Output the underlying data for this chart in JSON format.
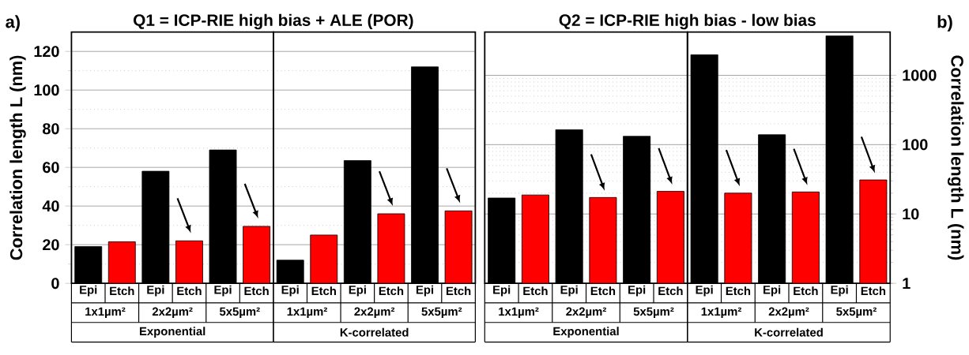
{
  "chart_data": [
    {
      "type": "bar",
      "title": "Q1 = ICP-RIE high bias + ALE (POR)",
      "ylabel": "Correlation length L (nm)",
      "xlabel": "Exponential",
      "categories": [
        "Epi",
        "Etch",
        "Epi",
        "Etch",
        "Epi",
        "Etch"
      ],
      "values": [
        19,
        21.5,
        58,
        22,
        69,
        29.5
      ],
      "colors": [
        "#000000",
        "#ff0000",
        "#000000",
        "#ff0000",
        "#000000",
        "#ff0000"
      ],
      "ylim": [
        0,
        130
      ],
      "yticks": [
        0,
        20,
        40,
        60,
        80,
        100,
        120
      ],
      "grid": "y",
      "annotations": [
        "a)",
        "1x1µm²",
        "2x2µm²",
        "5x5µm²"
      ]
    },
    {
      "type": "bar",
      "xlabel": "K-correlated",
      "categories": [
        "Epi",
        "Etch",
        "Epi",
        "Etch",
        "Epi",
        "Etch"
      ],
      "values": [
        12,
        25,
        63.5,
        36,
        112,
        37.5
      ],
      "colors": [
        "#000000",
        "#ff0000",
        "#000000",
        "#ff0000",
        "#000000",
        "#ff0000"
      ],
      "ylim": [
        0,
        130
      ],
      "yticks": [
        0,
        20,
        40,
        60,
        80,
        100,
        120
      ],
      "grid": "y",
      "tick_labels": "x",
      "annotations": [
        "1x1µm²",
        "2x2µm²",
        "5x5µm²"
      ]
    },
    {
      "type": "bar",
      "title": "Q2 = ICP-RIE high bias - low bias",
      "xlabel": "Exponential",
      "categories": [
        "Epi",
        "Etch",
        "Epi",
        "Etch",
        "Epi",
        "Etch"
      ],
      "series": [
        {
          "axis": "y2",
          "values": [
            17,
            18.8,
            164,
            17.3,
            132,
            21.2
          ],
          "colors": [
            "#000000",
            "#ff0000",
            "#000000",
            "#ff0000",
            "#000000",
            "#ff0000"
          ]
        }
      ],
      "y2lim": [
        1,
        4200
      ],
      "y2ticks": [
        1,
        10,
        100,
        1000
      ],
      "log": "y2",
      "grid": "y",
      "tick_labels": "x",
      "annotations": [
        "1x1µm²",
        "2x2µm²",
        "5x5µm²"
      ]
    },
    {
      "type": "bar",
      "y2label": "Correlation length L (nm)",
      "xlabel": "K-correlated",
      "categories": [
        "Epi",
        "Etch",
        "Epi",
        "Etch",
        "Epi",
        "Etch"
      ],
      "series": [
        {
          "axis": "y2",
          "values": [
            1980,
            20,
            139,
            20.8,
            3700,
            31
          ],
          "colors": [
            "#000000",
            "#ff0000",
            "#000000",
            "#ff0000",
            "#000000",
            "#ff0000"
          ]
        }
      ],
      "y2lim": [
        1,
        4200
      ],
      "y2ticks": [
        1,
        10,
        100,
        1000
      ],
      "log": "y2",
      "grid": "y",
      "annotations": [
        "1x1µm²",
        "2x2µm²",
        "5x5µm²",
        "b)"
      ]
    }
  ]
}
